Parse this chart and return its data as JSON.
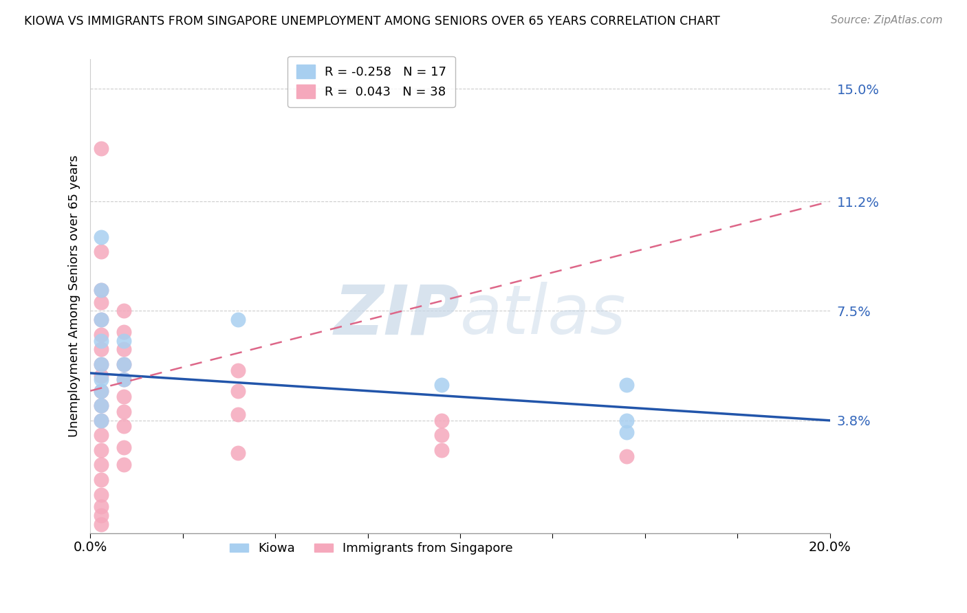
{
  "title": "KIOWA VS IMMIGRANTS FROM SINGAPORE UNEMPLOYMENT AMONG SENIORS OVER 65 YEARS CORRELATION CHART",
  "source": "Source: ZipAtlas.com",
  "ylabel": "Unemployment Among Seniors over 65 years",
  "xlim": [
    0.0,
    0.2
  ],
  "ylim": [
    0.0,
    0.16
  ],
  "xtick_vals": [
    0.0,
    0.025,
    0.05,
    0.075,
    0.1,
    0.125,
    0.15,
    0.175,
    0.2
  ],
  "xtick_major": [
    0.0,
    0.1,
    0.2
  ],
  "xtick_labels_major": [
    "0.0%",
    "",
    "20.0%"
  ],
  "ytick_vals": [
    0.038,
    0.075,
    0.112,
    0.15
  ],
  "ytick_labels": [
    "3.8%",
    "7.5%",
    "11.2%",
    "15.0%"
  ],
  "kiowa_R": -0.258,
  "kiowa_N": 17,
  "singapore_R": 0.043,
  "singapore_N": 38,
  "kiowa_color": "#a8cff0",
  "singapore_color": "#f5a8bc",
  "kiowa_line_color": "#2255aa",
  "singapore_line_color": "#dd6688",
  "background_color": "#ffffff",
  "kiowa_line_x0": 0.0,
  "kiowa_line_y0": 0.054,
  "kiowa_line_x1": 0.2,
  "kiowa_line_y1": 0.038,
  "singapore_line_x0": 0.0,
  "singapore_line_y0": 0.048,
  "singapore_line_x1": 0.2,
  "singapore_line_y1": 0.112,
  "kiowa_x": [
    0.003,
    0.003,
    0.003,
    0.003,
    0.003,
    0.003,
    0.003,
    0.003,
    0.003,
    0.009,
    0.009,
    0.009,
    0.04,
    0.095,
    0.145,
    0.145,
    0.145
  ],
  "kiowa_y": [
    0.1,
    0.082,
    0.072,
    0.065,
    0.057,
    0.052,
    0.048,
    0.043,
    0.038,
    0.065,
    0.057,
    0.052,
    0.072,
    0.05,
    0.05,
    0.038,
    0.034
  ],
  "singapore_x": [
    0.003,
    0.003,
    0.003,
    0.003,
    0.003,
    0.003,
    0.003,
    0.003,
    0.003,
    0.003,
    0.003,
    0.003,
    0.003,
    0.003,
    0.003,
    0.003,
    0.003,
    0.003,
    0.003,
    0.003,
    0.009,
    0.009,
    0.009,
    0.009,
    0.009,
    0.009,
    0.009,
    0.009,
    0.009,
    0.009,
    0.04,
    0.04,
    0.04,
    0.04,
    0.095,
    0.095,
    0.095,
    0.145
  ],
  "singapore_y": [
    0.13,
    0.095,
    0.082,
    0.078,
    0.072,
    0.067,
    0.062,
    0.057,
    0.053,
    0.048,
    0.043,
    0.038,
    0.033,
    0.028,
    0.023,
    0.018,
    0.013,
    0.009,
    0.006,
    0.003,
    0.075,
    0.068,
    0.062,
    0.057,
    0.052,
    0.046,
    0.041,
    0.036,
    0.029,
    0.023,
    0.055,
    0.048,
    0.04,
    0.027,
    0.038,
    0.033,
    0.028,
    0.026
  ]
}
